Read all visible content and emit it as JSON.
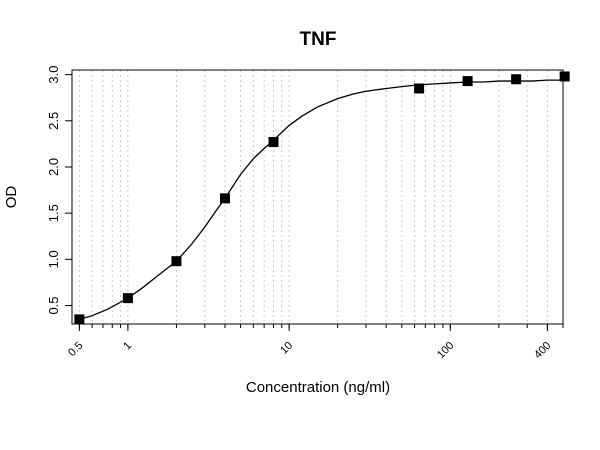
{
  "chart_data": {
    "type": "scatter",
    "title": "TNF",
    "xlabel": "Concentration (ng/ml)",
    "ylabel": "OD",
    "x_scale": "log",
    "xlim": [
      0.45,
      500
    ],
    "ylim": [
      0.3,
      3.05
    ],
    "x_ticks": [
      0.5,
      1,
      10,
      100,
      400
    ],
    "x_tick_labels": [
      "0.5",
      "1",
      "10",
      "100",
      "400"
    ],
    "y_ticks": [
      0.5,
      1.0,
      1.5,
      2.0,
      2.5,
      3.0
    ],
    "y_tick_labels": [
      "0.5",
      "1.0",
      "1.5",
      "2.0",
      "2.5",
      "3.0"
    ],
    "grid": "vertical dotted at log-minor ticks",
    "series": [
      {
        "marker": "filled-square",
        "color": "#000000",
        "x": [
          0.5,
          1,
          2,
          4,
          8,
          64,
          128,
          256,
          512
        ],
        "y": [
          0.35,
          0.58,
          0.98,
          1.66,
          2.27,
          2.85,
          2.93,
          2.95,
          2.98
        ]
      }
    ],
    "fit_curve": {
      "style": "solid line",
      "color": "#000000",
      "x": [
        0.5,
        0.6,
        0.75,
        1,
        1.25,
        1.5,
        2,
        2.5,
        3,
        3.5,
        4,
        5,
        6,
        7,
        8,
        10,
        12,
        15,
        20,
        25,
        30,
        40,
        50,
        64,
        80,
        100,
        128,
        160,
        200,
        256,
        320,
        400,
        512
      ],
      "y": [
        0.35,
        0.39,
        0.46,
        0.58,
        0.7,
        0.81,
        0.98,
        1.17,
        1.35,
        1.52,
        1.66,
        1.92,
        2.09,
        2.2,
        2.29,
        2.45,
        2.55,
        2.65,
        2.74,
        2.79,
        2.82,
        2.85,
        2.87,
        2.89,
        2.9,
        2.91,
        2.92,
        2.92,
        2.93,
        2.93,
        2.93,
        2.94,
        2.94
      ]
    }
  }
}
